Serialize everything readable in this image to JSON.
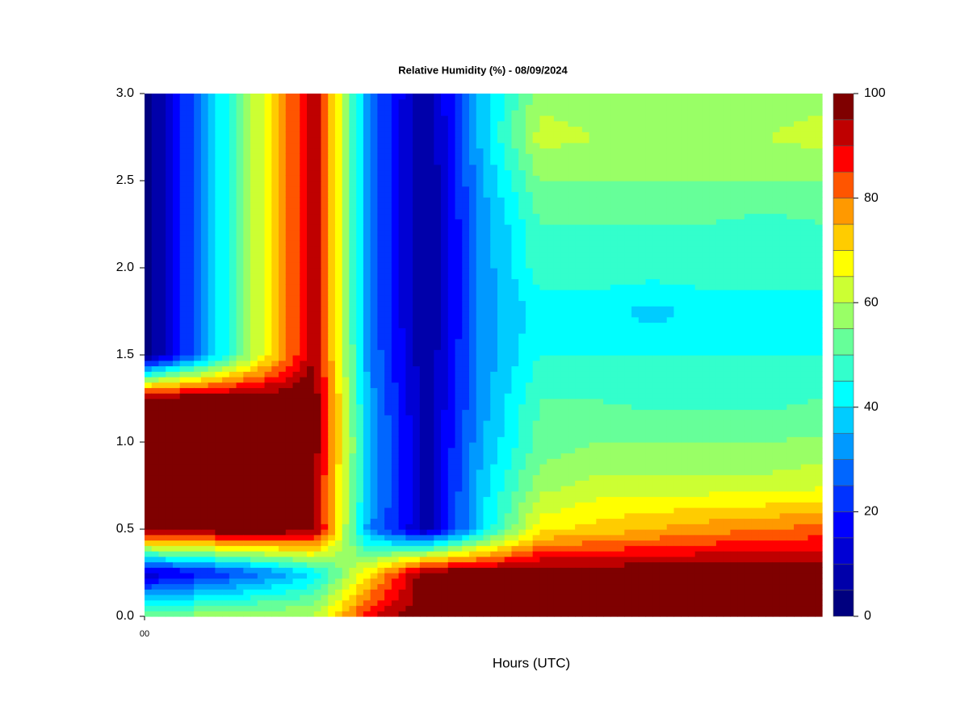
{
  "chart_data": {
    "type": "contour",
    "title": "Relative Humidity (%) - 08/09/2024",
    "x_label": "Hours (UTC)",
    "x": [
      0,
      2,
      4,
      6,
      8,
      10,
      12,
      14,
      16,
      18,
      20,
      22,
      24
    ],
    "y": [
      0,
      0.25,
      0.5,
      0.75,
      1.0,
      1.25,
      1.5,
      1.75,
      2.0,
      2.25,
      2.5,
      2.75,
      3.0
    ],
    "z": [
      [
        55,
        58,
        60,
        60,
        90,
        100,
        100,
        100,
        100,
        100,
        100,
        100,
        100
      ],
      [
        10,
        18,
        28,
        40,
        70,
        100,
        100,
        100,
        100,
        100,
        100,
        100,
        100
      ],
      [
        98,
        100,
        100,
        98,
        30,
        8,
        40,
        68,
        72,
        75,
        78,
        80,
        82
      ],
      [
        100,
        100,
        100,
        95,
        35,
        8,
        38,
        58,
        62,
        62,
        62,
        62,
        64
      ],
      [
        100,
        100,
        100,
        100,
        35,
        8,
        35,
        52,
        55,
        55,
        55,
        55,
        56
      ],
      [
        100,
        100,
        100,
        100,
        32,
        6,
        33,
        50,
        50,
        48,
        48,
        48,
        50
      ],
      [
        0,
        30,
        62,
        95,
        30,
        5,
        32,
        45,
        45,
        45,
        45,
        45,
        45
      ],
      [
        0,
        30,
        62,
        95,
        28,
        4,
        32,
        42,
        42,
        38,
        42,
        42,
        42
      ],
      [
        0,
        30,
        62,
        95,
        28,
        4,
        32,
        48,
        48,
        48,
        48,
        48,
        48
      ],
      [
        0,
        30,
        62,
        95,
        28,
        4,
        32,
        50,
        50,
        50,
        50,
        48,
        50
      ],
      [
        0,
        30,
        62,
        95,
        28,
        4,
        35,
        55,
        55,
        55,
        55,
        55,
        55
      ],
      [
        0,
        30,
        62,
        95,
        28,
        4,
        38,
        62,
        60,
        60,
        60,
        60,
        62
      ],
      [
        0,
        30,
        62,
        95,
        28,
        5,
        38,
        58,
        58,
        58,
        58,
        58,
        58
      ]
    ],
    "xlim": [
      0,
      24
    ],
    "xticks": [
      {
        "value": 0,
        "label": "00"
      }
    ],
    "ylim": [
      0,
      3
    ],
    "yticks": [
      {
        "value": 0,
        "label": "0.0"
      },
      0.5,
      {
        "value": 1,
        "label": "1.0"
      },
      1.5,
      {
        "value": 2,
        "label": "2.0"
      },
      2.5,
      {
        "value": 3,
        "label": "3.0"
      }
    ],
    "levels": [
      0,
      5,
      10,
      15,
      20,
      25,
      30,
      35,
      40,
      45,
      50,
      55,
      60,
      65,
      70,
      75,
      80,
      85,
      90,
      95,
      100
    ],
    "colors": [
      "#00007F",
      "#0000AA",
      "#0000D4",
      "#0000FF",
      "#0033FF",
      "#0066FF",
      "#0099FF",
      "#00CCFF",
      "#00FFFF",
      "#33FFCC",
      "#66FF99",
      "#99FF66",
      "#CCFF33",
      "#FFFF00",
      "#FFCC00",
      "#FF9900",
      "#FF5500",
      "#FF0000",
      "#BF0000",
      "#7F0000"
    ],
    "colorbar_ticks": [
      0,
      20,
      40,
      60,
      80,
      100
    ]
  }
}
